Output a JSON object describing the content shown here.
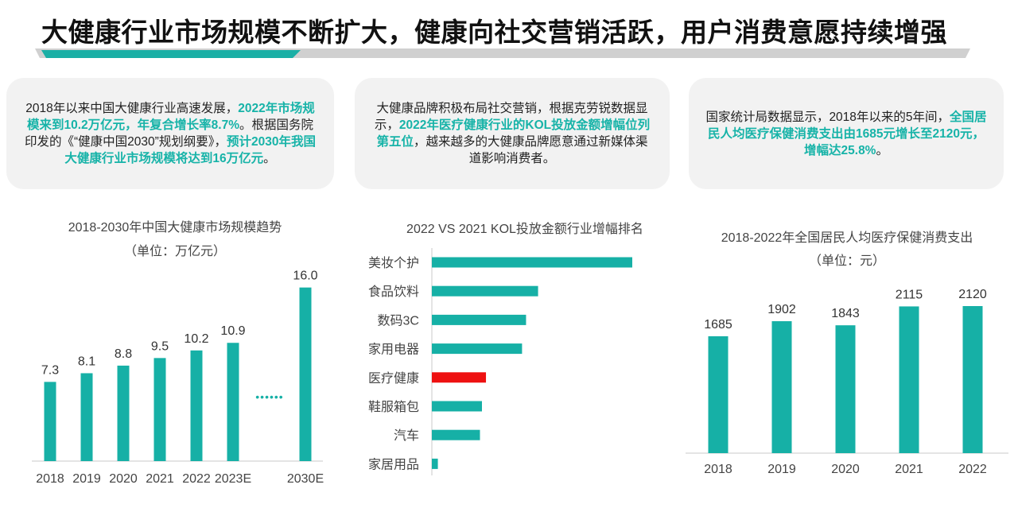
{
  "title": "大健康行业市场规模不断扩大，健康向社交营销活跃，用户消费意愿持续增强",
  "colors": {
    "teal": "#16b0a6",
    "red": "#ee1111",
    "highlight": "#17b3a8"
  },
  "cards": [
    {
      "segments": [
        {
          "text": "2018年以来中国大健康行业高速发展，",
          "hl": false
        },
        {
          "text": "2022年市场规模来到10.2万亿元，年复合增长率8.7%",
          "hl": true
        },
        {
          "text": "。根据国务院印发的《“健康中国2030”规划纲要》，",
          "hl": false
        },
        {
          "text": "预计2030年我国大健康行业市场规模将达到16万亿元",
          "hl": true
        },
        {
          "text": "。",
          "hl": false
        }
      ]
    },
    {
      "segments": [
        {
          "text": "大健康品牌积极布局社交营销，根据克劳锐数据显示，",
          "hl": false
        },
        {
          "text": "2022年医疗健康行业的KOL投放金额增幅位列第五位",
          "hl": true
        },
        {
          "text": "，越来越多的大健康品牌愿意通过新媒体渠道影响消费者。",
          "hl": false
        }
      ]
    },
    {
      "segments": [
        {
          "text": "国家统计局数据显示，2018年以来的5年间，",
          "hl": false
        },
        {
          "text": "全国居民人均医疗保健消费支出由1685元增长至2120元，增幅达25.8%",
          "hl": true
        },
        {
          "text": "。",
          "hl": false
        }
      ]
    }
  ],
  "chart_data": [
    {
      "type": "bar",
      "title": "2018-2030年中国大健康市场规模趋势",
      "subtitle": "（单位：万亿元）",
      "categories": [
        "2018",
        "2019",
        "2020",
        "2021",
        "2022",
        "2023E",
        "2030E"
      ],
      "values": [
        7.3,
        8.1,
        8.8,
        9.5,
        10.2,
        10.9,
        16.0
      ],
      "value_labels": [
        "7.3",
        "8.1",
        "8.8",
        "9.5",
        "10.2",
        "10.9",
        "16.0"
      ],
      "ylim": [
        0,
        17
      ],
      "gap_marker": "••••••",
      "grid": false
    },
    {
      "type": "bar",
      "orientation": "horizontal",
      "title": "2022 VS 2021 KOL投放金额行业增幅排名",
      "categories": [
        "美妆个护",
        "食品饮料",
        "数码3C",
        "家用电器",
        "医疗健康",
        "鞋服箱包",
        "汽车",
        "家居用品"
      ],
      "values": [
        100,
        53,
        47,
        45,
        27,
        25,
        24,
        3
      ],
      "highlight": "医疗健康",
      "value_axis": "relative (no scale shown)"
    },
    {
      "type": "bar",
      "title": "2018-2022年全国居民人均医疗保健消费支出",
      "subtitle": "（单位：元）",
      "categories": [
        "2018",
        "2019",
        "2020",
        "2021",
        "2022"
      ],
      "values": [
        1685,
        1902,
        1843,
        2115,
        2120
      ],
      "ylim": [
        0,
        2600
      ],
      "grid": false
    }
  ]
}
